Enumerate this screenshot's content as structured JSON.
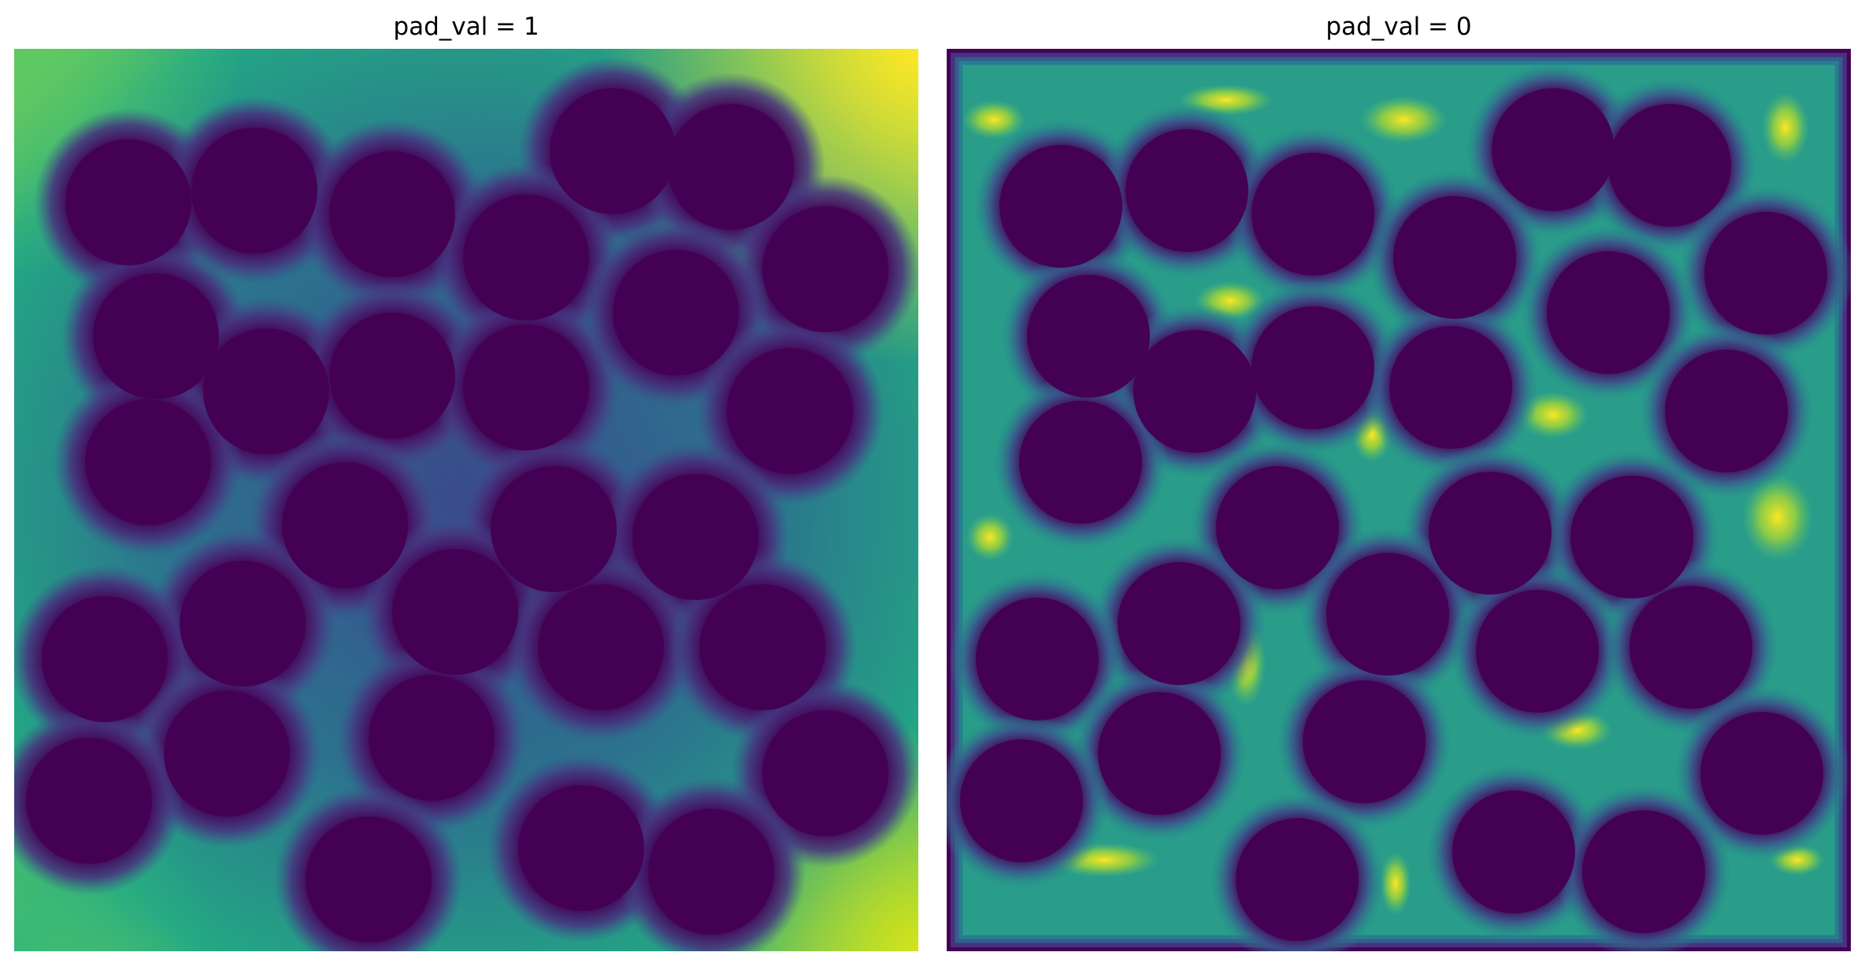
{
  "figure": {
    "panels": [
      {
        "title": "pad_val = 1"
      },
      {
        "title": "pad_val = 0"
      }
    ]
  },
  "colormap": {
    "name": "viridis",
    "low": "#440154",
    "mid": "#21908d",
    "high": "#fde725"
  }
}
